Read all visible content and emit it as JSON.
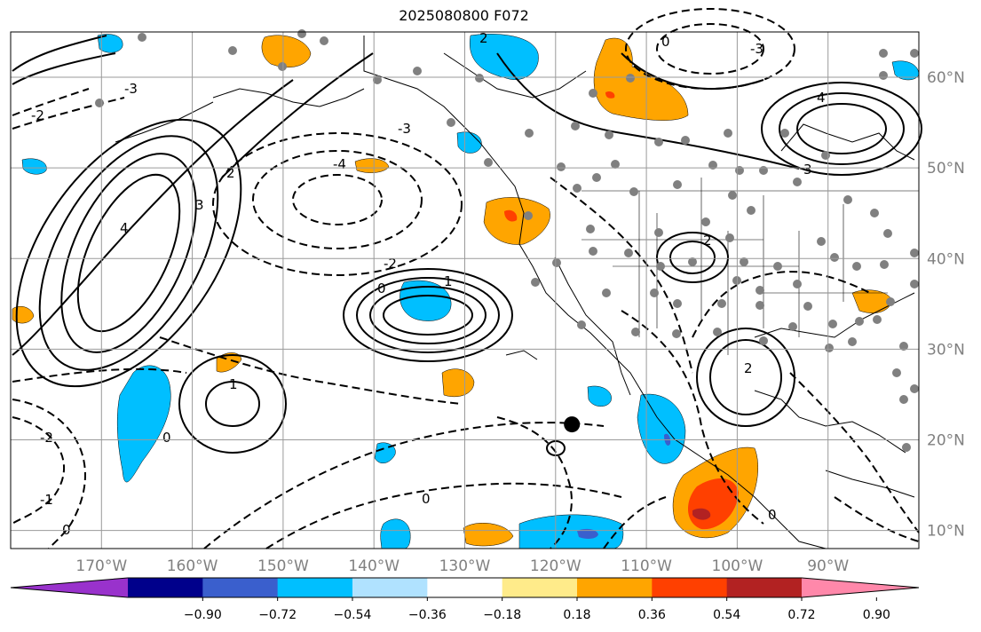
{
  "title": "2025080800 F072",
  "map": {
    "lon_range": [
      -180,
      -80
    ],
    "lat_range": [
      8,
      65
    ],
    "lon_ticks": [
      {
        "lon": -170,
        "label": "170°W"
      },
      {
        "lon": -160,
        "label": "160°W"
      },
      {
        "lon": -150,
        "label": "150°W"
      },
      {
        "lon": -140,
        "label": "140°W"
      },
      {
        "lon": -130,
        "label": "130°W"
      },
      {
        "lon": -120,
        "label": "120°W"
      },
      {
        "lon": -110,
        "label": "110°W"
      },
      {
        "lon": -100,
        "label": "100°W"
      },
      {
        "lon": -90,
        "label": "90°W"
      }
    ],
    "lat_ticks": [
      {
        "lat": 60,
        "label": "60°N"
      },
      {
        "lat": 50,
        "label": "50°N"
      },
      {
        "lat": 40,
        "label": "40°N"
      },
      {
        "lat": 30,
        "label": "30°N"
      },
      {
        "lat": 20,
        "label": "20°N"
      },
      {
        "lat": 10,
        "label": "10°N"
      }
    ],
    "contour_labels": [
      "0",
      "1",
      "2",
      "3",
      "4",
      "-1",
      "-2",
      "-3",
      "-4"
    ],
    "storm_marker": {
      "lon": -118.2,
      "lat": 21.7
    }
  },
  "colorbar": {
    "colors": [
      "#9932cc",
      "#00008b",
      "#3a5fcd",
      "#00bfff",
      "#b0e2ff",
      "#ffffff",
      "#ffeb8a",
      "#ffa500",
      "#ff4000",
      "#b22222",
      "#ff88aa"
    ],
    "tick_labels": [
      "−0.90",
      "−0.72",
      "−0.54",
      "−0.36",
      "−0.18",
      "0.18",
      "0.36",
      "0.54",
      "0.72",
      "0.90"
    ]
  }
}
